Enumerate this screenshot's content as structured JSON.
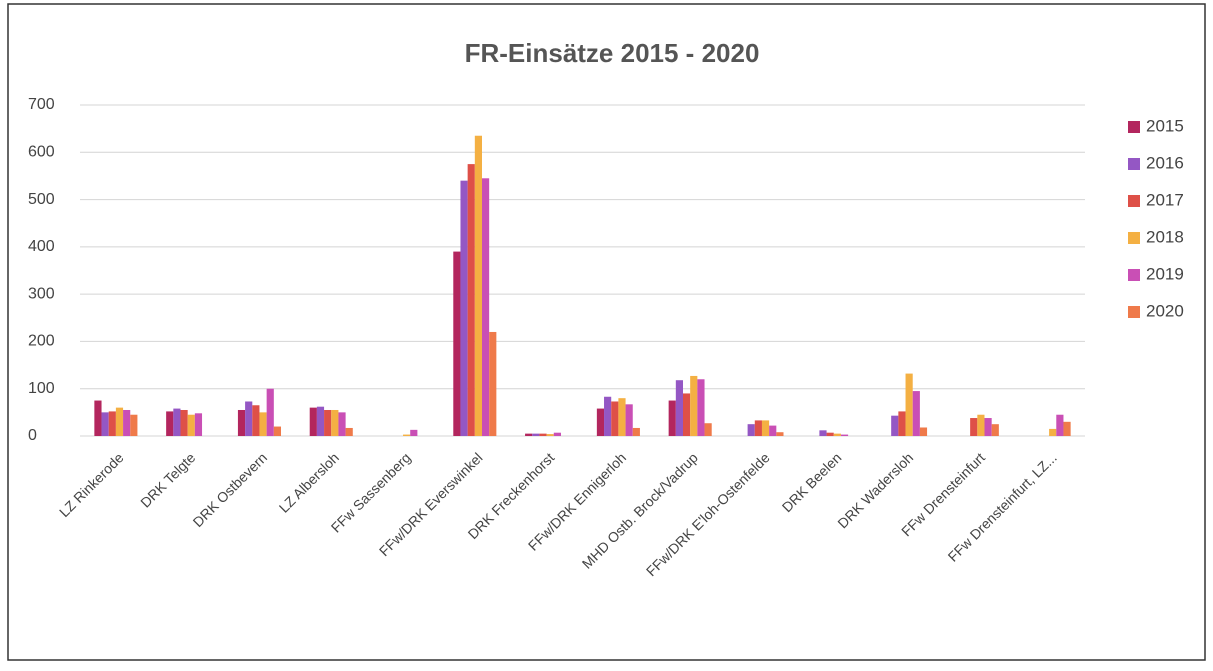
{
  "chart_data": {
    "type": "bar",
    "title": "FR-Einsätze 2015 - 2020",
    "categories": [
      "LZ Rinkerode",
      "DRK Telgte",
      "DRK Ostbevern",
      "LZ Albersloh",
      "FFw Sassenberg",
      "FFw/DRK Everswinkel",
      "DRK Freckenhorst",
      "FFw/DRK Ennigerloh",
      "MHD Ostb. Brock/Vadrup",
      "FFw/DRK E'loh-Ostenfelde",
      "DRK Beelen",
      "DRK Wadersloh",
      "FFw Drensteinfurt",
      "FFw Drensteinfurt, LZ..."
    ],
    "series": [
      {
        "name": "2015",
        "color": "#b3265e",
        "values": [
          75,
          52,
          55,
          60,
          null,
          390,
          5,
          58,
          75,
          null,
          null,
          null,
          null,
          null
        ]
      },
      {
        "name": "2016",
        "color": "#9457c4",
        "values": [
          50,
          58,
          73,
          62,
          null,
          540,
          5,
          83,
          118,
          25,
          12,
          43,
          null,
          null
        ]
      },
      {
        "name": "2017",
        "color": "#de5048",
        "values": [
          52,
          55,
          65,
          55,
          null,
          575,
          5,
          73,
          90,
          33,
          7,
          52,
          38,
          null
        ]
      },
      {
        "name": "2018",
        "color": "#f4b043",
        "values": [
          60,
          45,
          50,
          55,
          3,
          635,
          4,
          80,
          127,
          33,
          5,
          132,
          45,
          15
        ]
      },
      {
        "name": "2019",
        "color": "#c94fb5",
        "values": [
          55,
          48,
          100,
          50,
          13,
          545,
          7,
          67,
          120,
          22,
          3,
          95,
          38,
          45
        ]
      },
      {
        "name": "2020",
        "color": "#ef7a4a",
        "values": [
          45,
          null,
          20,
          17,
          null,
          220,
          null,
          17,
          27,
          8,
          null,
          18,
          25,
          30
        ]
      }
    ],
    "ylim": [
      0,
      700
    ],
    "yticks": [
      0,
      100,
      200,
      300,
      400,
      500,
      600,
      700
    ],
    "grid": true,
    "legend": "right"
  }
}
